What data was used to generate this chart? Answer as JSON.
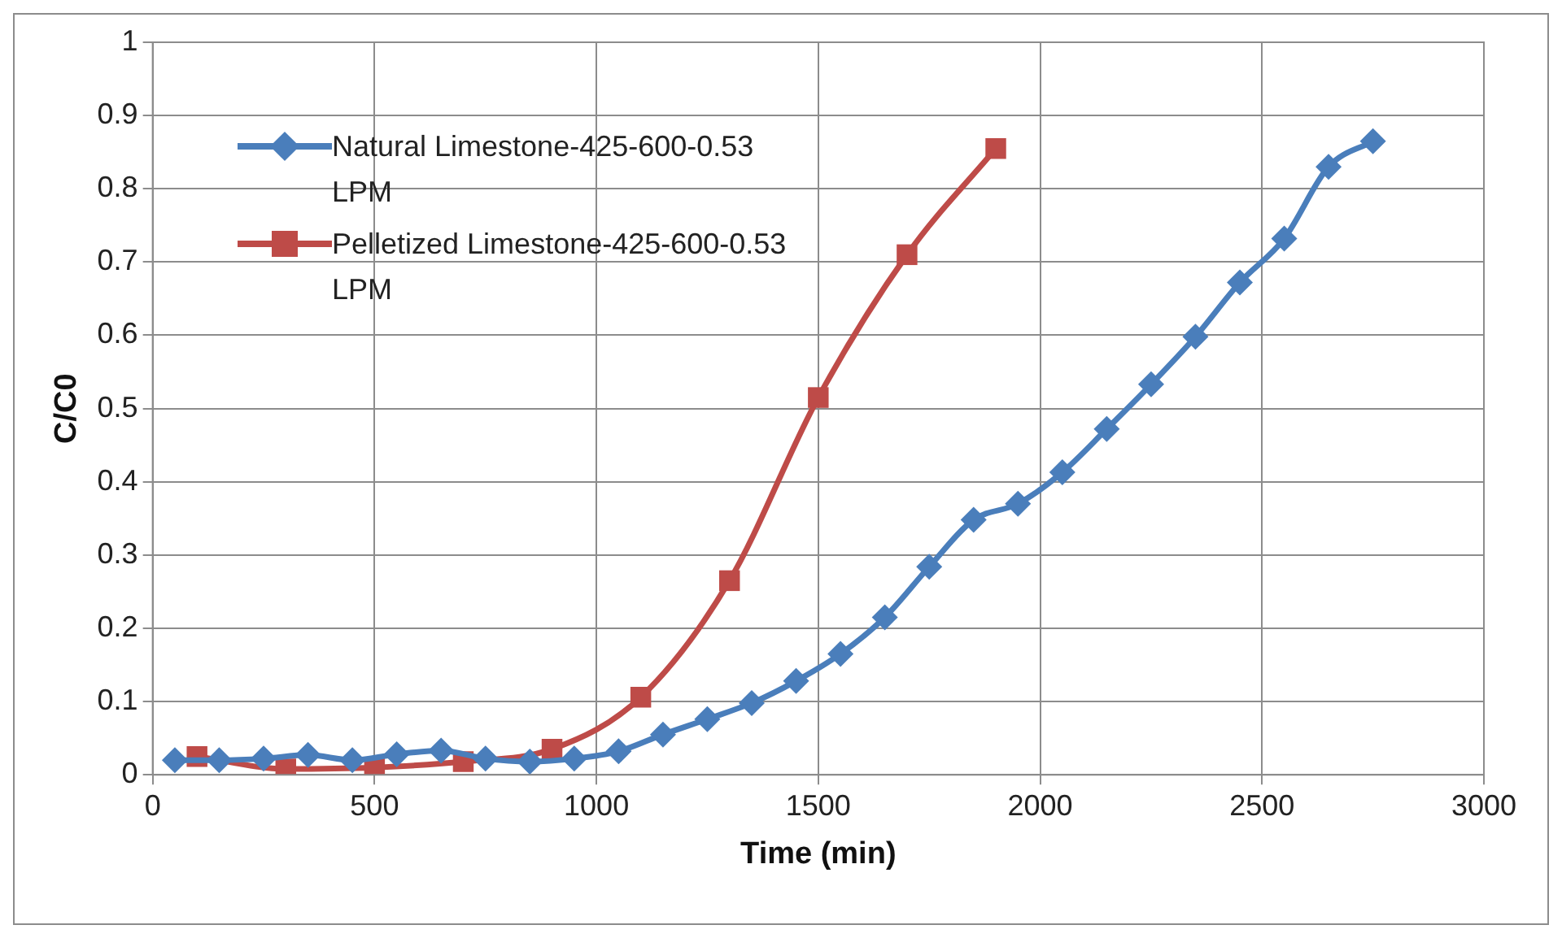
{
  "chart_data": {
    "type": "line",
    "xlabel": "Time (min)",
    "ylabel": "C/C0",
    "xlim": [
      0,
      3000
    ],
    "xticks": [
      0,
      500,
      1000,
      1500,
      2000,
      2500,
      3000
    ],
    "ylim": [
      0,
      1
    ],
    "yticks": [
      0,
      0.1,
      0.2,
      0.3,
      0.4,
      0.5,
      0.6,
      0.7,
      0.8,
      0.9,
      1
    ],
    "grid": true,
    "legend": "top left",
    "series": [
      {
        "name": "Natural Limestone-425-600-0.53 LPM",
        "color": "#4a7ebb",
        "marker": "diamond",
        "x": [
          50,
          150,
          250,
          350,
          450,
          550,
          650,
          750,
          850,
          950,
          1050,
          1150,
          1250,
          1350,
          1450,
          1550,
          1650,
          1750,
          1850,
          1950,
          2050,
          2150,
          2250,
          2350,
          2450,
          2550,
          2650,
          2750
        ],
        "values": [
          0.02,
          0.02,
          0.022,
          0.027,
          0.02,
          0.028,
          0.033,
          0.022,
          0.018,
          0.022,
          0.032,
          0.055,
          0.076,
          0.098,
          0.128,
          0.165,
          0.215,
          0.284,
          0.348,
          0.37,
          0.413,
          0.472,
          0.533,
          0.598,
          0.672,
          0.732,
          0.83,
          0.865
        ]
      },
      {
        "name": "Pelletized Limestone-425-600-0.53 LPM",
        "color": "#be4b48",
        "marker": "square",
        "x": [
          100,
          300,
          500,
          700,
          900,
          1100,
          1300,
          1500,
          1700,
          1900
        ],
        "values": [
          0.025,
          0.008,
          0.01,
          0.018,
          0.035,
          0.106,
          0.265,
          0.515,
          0.71,
          0.855
        ]
      }
    ]
  }
}
